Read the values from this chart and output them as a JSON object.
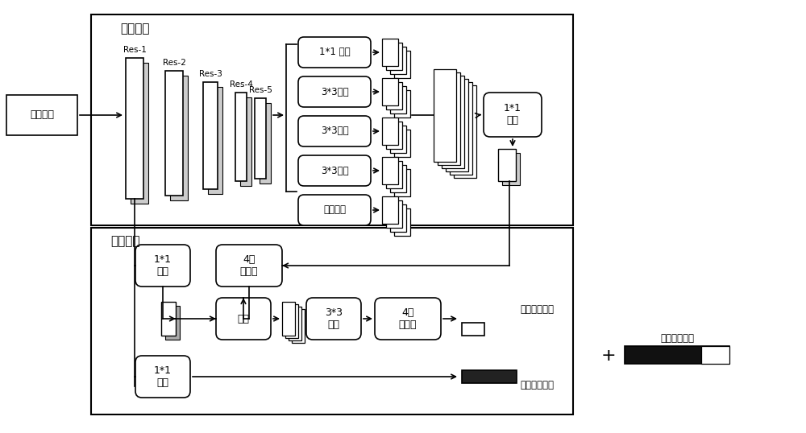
{
  "bg_color": "#ffffff",
  "encoder_label": "编码阶段",
  "decoder_label": "解码阶段",
  "input_label": "输入图像",
  "res_labels": [
    "Res-1",
    "Res-2",
    "Res-3",
    "Res-4",
    "Res-5"
  ],
  "conv_boxes": [
    "1*1 卷积",
    "3*3卷积",
    "3*3卷积",
    "3*3卷积",
    "图像池化"
  ],
  "encoder_conv_label": "1*1\n卷积",
  "decoder_box1": "1*1\n卷积",
  "decoder_box2": "4倍\n上采样",
  "decoder_box3": "连接",
  "decoder_box4": "3*3\n卷积",
  "decoder_box5": "4倍\n上采样",
  "decoder_box6": "1*1\n卷积",
  "output1": "语义类别向量",
  "output2": "对象特征向量",
  "output3": "地点语义向量",
  "plus_sign": "+"
}
